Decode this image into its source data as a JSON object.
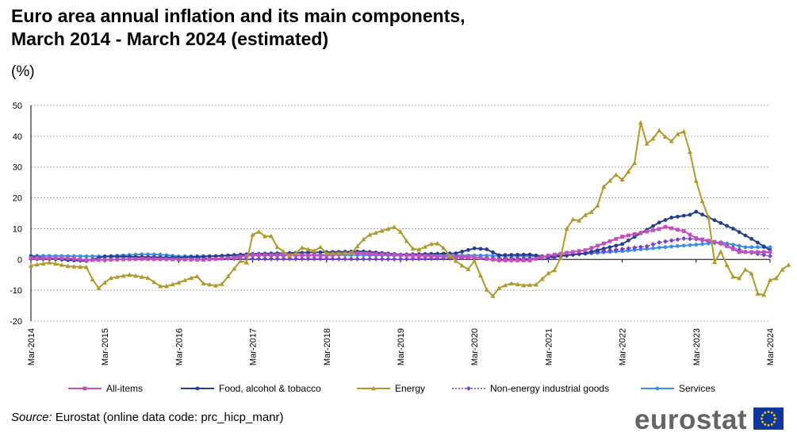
{
  "header": {
    "title_line1": "Euro area annual inflation and its main components,",
    "title_line2": "March 2014 - March 2024 (estimated)",
    "unit": "(%)"
  },
  "footer": {
    "source_label": "Source:",
    "source_text": " Eurostat (online data code: prc_hicp_manr)",
    "logo_text": "eurostat"
  },
  "colors": {
    "all_items": "#c34fc0",
    "food": "#253f8f",
    "energy": "#b09a2b",
    "non_energy": "#7a3fd1",
    "services": "#3d8fe3",
    "grid": "#9a9a9a",
    "flag_blue": "#10379a",
    "flag_star": "#ffd200"
  },
  "chart_data": {
    "type": "line",
    "title": "Euro area annual inflation and its main components, March 2014 - March 2024 (estimated)",
    "ylabel": "(%)",
    "xlabel": "",
    "ylim": [
      -20,
      50
    ],
    "yticks": [
      -20,
      -10,
      0,
      10,
      20,
      30,
      40,
      50
    ],
    "grid": true,
    "legend_position": "bottom",
    "x_tick_labels": [
      "Mar-2014",
      "Mar-2015",
      "Mar-2016",
      "Mar-2017",
      "Mar-2018",
      "Mar-2019",
      "Mar-2020",
      "Mar-2021",
      "Mar-2022",
      "Mar-2023",
      "Mar-2024"
    ],
    "x_tick_index": [
      0,
      12,
      24,
      36,
      48,
      60,
      72,
      84,
      96,
      108,
      120
    ],
    "series": [
      {
        "name": "All-items",
        "key": "all_items",
        "marker": "square",
        "dash": false,
        "knots": [
          [
            0,
            0.5
          ],
          [
            6,
            0.4
          ],
          [
            9,
            -0.2
          ],
          [
            12,
            -0.1
          ],
          [
            18,
            0.2
          ],
          [
            24,
            0
          ],
          [
            28,
            -0.1
          ],
          [
            33,
            0.6
          ],
          [
            36,
            1.5
          ],
          [
            48,
            1.3
          ],
          [
            52,
            2.1
          ],
          [
            60,
            1.4
          ],
          [
            72,
            0.7
          ],
          [
            76,
            -0.3
          ],
          [
            81,
            -0.3
          ],
          [
            84,
            1.3
          ],
          [
            90,
            3
          ],
          [
            96,
            7.4
          ],
          [
            102,
            9.9
          ],
          [
            103,
            10.6
          ],
          [
            106,
            9.2
          ],
          [
            108,
            6.9
          ],
          [
            112,
            5.3
          ],
          [
            115,
            2.4
          ],
          [
            117,
            2.4
          ],
          [
            120,
            2.4
          ]
        ]
      },
      {
        "name": "Food, alcohol & tobacco",
        "key": "food",
        "marker": "circle",
        "dash": false,
        "knots": [
          [
            0,
            1
          ],
          [
            6,
            -0.2
          ],
          [
            9,
            -0.5
          ],
          [
            12,
            1
          ],
          [
            24,
            0.6
          ],
          [
            30,
            1.1
          ],
          [
            36,
            1.8
          ],
          [
            48,
            2.4
          ],
          [
            54,
            2.6
          ],
          [
            60,
            1.6
          ],
          [
            69,
            2
          ],
          [
            72,
            3.6
          ],
          [
            74,
            3.3
          ],
          [
            76,
            1.4
          ],
          [
            81,
            1.6
          ],
          [
            84,
            0.8
          ],
          [
            90,
            2
          ],
          [
            96,
            5
          ],
          [
            102,
            12
          ],
          [
            104,
            13.6
          ],
          [
            107,
            14.5
          ],
          [
            108,
            15.5
          ],
          [
            114,
            10
          ],
          [
            117,
            6.7
          ],
          [
            120,
            3
          ]
        ]
      },
      {
        "name": "Energy",
        "key": "energy",
        "marker": "triangle",
        "dash": false,
        "knots": [
          [
            0,
            -2
          ],
          [
            3,
            -1
          ],
          [
            6,
            -2.2
          ],
          [
            9,
            -2.5
          ],
          [
            10,
            -6.5
          ],
          [
            11,
            -9.3
          ],
          [
            12,
            -7.5
          ],
          [
            13,
            -6
          ],
          [
            16,
            -5
          ],
          [
            19,
            -6
          ],
          [
            21,
            -8.7
          ],
          [
            22,
            -8.7
          ],
          [
            24,
            -7.5
          ],
          [
            26,
            -6
          ],
          [
            27,
            -5.5
          ],
          [
            28,
            -7.8
          ],
          [
            30,
            -8.5
          ],
          [
            31,
            -8
          ],
          [
            33,
            -3
          ],
          [
            34,
            -0.5
          ],
          [
            35,
            -1
          ],
          [
            36,
            8
          ],
          [
            37,
            9
          ],
          [
            38,
            7.5
          ],
          [
            39,
            7.6
          ],
          [
            40,
            4
          ],
          [
            42,
            1.2
          ],
          [
            43,
            2
          ],
          [
            44,
            3.8
          ],
          [
            46,
            2.8
          ],
          [
            47,
            4
          ],
          [
            48,
            2
          ],
          [
            52,
            2
          ],
          [
            54,
            6.5
          ],
          [
            55,
            8
          ],
          [
            57,
            9.3
          ],
          [
            59,
            10.5
          ],
          [
            60,
            9
          ],
          [
            61,
            6
          ],
          [
            62,
            3.5
          ],
          [
            63,
            3.2
          ],
          [
            65,
            5
          ],
          [
            66,
            5.2
          ],
          [
            67,
            3.7
          ],
          [
            68,
            1.2
          ],
          [
            69,
            -0.5
          ],
          [
            70,
            -2
          ],
          [
            71,
            -3.2
          ],
          [
            72,
            -0.5
          ],
          [
            74,
            -9.8
          ],
          [
            75,
            -11.9
          ],
          [
            76,
            -9.3
          ],
          [
            77,
            -8.4
          ],
          [
            78,
            -7.8
          ],
          [
            80,
            -8.4
          ],
          [
            82,
            -8.2
          ],
          [
            84,
            -4.5
          ],
          [
            85,
            -3.5
          ],
          [
            86,
            0.5
          ],
          [
            87,
            10
          ],
          [
            88,
            13
          ],
          [
            89,
            12.6
          ],
          [
            90,
            14.4
          ],
          [
            91,
            15.4
          ],
          [
            92,
            17.5
          ],
          [
            93,
            23.6
          ],
          [
            95,
            27.5
          ],
          [
            96,
            25.9
          ],
          [
            97,
            28.5
          ],
          [
            98,
            31.3
          ],
          [
            99,
            44.4
          ],
          [
            100,
            37.6
          ],
          [
            101,
            39.2
          ],
          [
            102,
            41.9
          ],
          [
            103,
            39.8
          ],
          [
            104,
            38.4
          ],
          [
            105,
            40.7
          ],
          [
            106,
            41.5
          ],
          [
            107,
            34.9
          ],
          [
            108,
            25.5
          ],
          [
            109,
            18.9
          ],
          [
            110,
            13.7
          ],
          [
            111,
            -0.9
          ],
          [
            112,
            2.5
          ],
          [
            113,
            -1.8
          ],
          [
            114,
            -5.6
          ],
          [
            115,
            -6.1
          ],
          [
            116,
            -3.3
          ],
          [
            117,
            -4.6
          ],
          [
            118,
            -11.1
          ],
          [
            119,
            -11.5
          ],
          [
            120,
            -6.7
          ],
          [
            121,
            -6.1
          ],
          [
            122,
            -3.3
          ],
          [
            123,
            -1.8
          ]
        ]
      },
      {
        "name": "Non-energy industrial goods",
        "key": "non_energy",
        "marker": "diamond",
        "dash": true,
        "knots": [
          [
            0,
            0.1
          ],
          [
            12,
            -0.1
          ],
          [
            18,
            0.4
          ],
          [
            24,
            0.5
          ],
          [
            36,
            0.2
          ],
          [
            48,
            0.2
          ],
          [
            60,
            0.1
          ],
          [
            72,
            0.5
          ],
          [
            84,
            0.3
          ],
          [
            88,
            1.5
          ],
          [
            96,
            3.4
          ],
          [
            100,
            4.3
          ],
          [
            102,
            5.5
          ],
          [
            106,
            6.8
          ],
          [
            108,
            6.6
          ],
          [
            112,
            5.1
          ],
          [
            116,
            2.5
          ],
          [
            120,
            1.1
          ]
        ]
      },
      {
        "name": "Services",
        "key": "services",
        "marker": "circle",
        "dash": false,
        "knots": [
          [
            0,
            1.2
          ],
          [
            12,
            1
          ],
          [
            18,
            1.7
          ],
          [
            21,
            1.6
          ],
          [
            24,
            1
          ],
          [
            30,
            1.1
          ],
          [
            36,
            1.3
          ],
          [
            48,
            1.5
          ],
          [
            60,
            1.3
          ],
          [
            72,
            1.3
          ],
          [
            84,
            1
          ],
          [
            90,
            1.9
          ],
          [
            96,
            2.7
          ],
          [
            104,
            4.2
          ],
          [
            108,
            4.8
          ],
          [
            112,
            5.6
          ],
          [
            116,
            4
          ],
          [
            120,
            4
          ]
        ]
      }
    ]
  }
}
